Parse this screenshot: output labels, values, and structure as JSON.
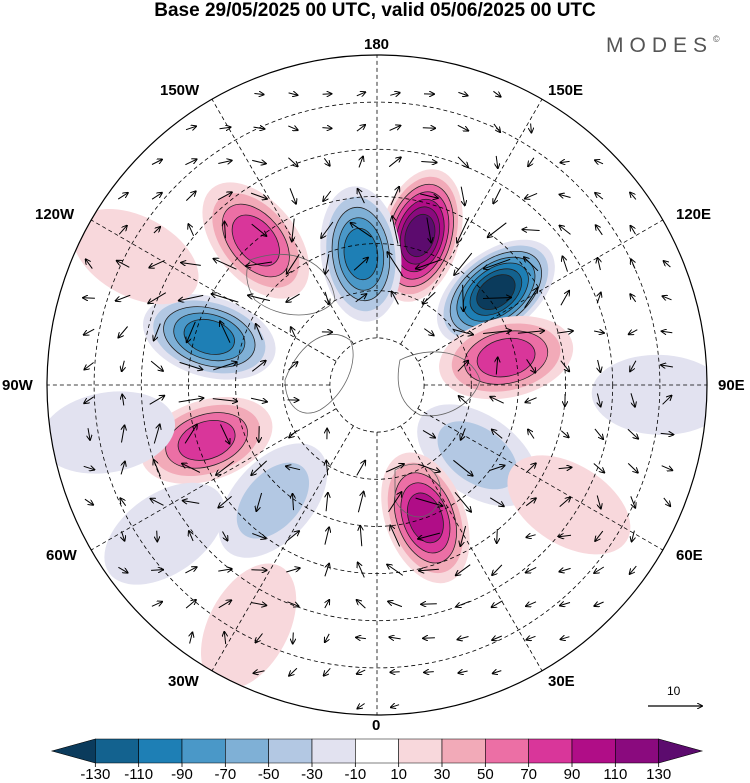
{
  "title": "Base 29/05/2025 00 UTC, valid 05/06/2025 00 UTC",
  "brand": "MODES",
  "brand_mark": "©",
  "longitude_labels": {
    "lon_180": "180",
    "lon_150e": "150E",
    "lon_120e": "120E",
    "lon_90e": "90E",
    "lon_60e": "60E",
    "lon_30e": "30E",
    "lon_0": "0",
    "lon_30w": "30W",
    "lon_60w": "60W",
    "lon_90w": "90W",
    "lon_120w": "120W",
    "lon_150w": "150W"
  },
  "wind_reference": {
    "value": "10"
  },
  "colorbar": {
    "ticks": [
      "-130",
      "-110",
      "-90",
      "-70",
      "-50",
      "-30",
      "-10",
      "10",
      "30",
      "50",
      "70",
      "90",
      "110",
      "130"
    ],
    "colors": [
      "#0b3b5c",
      "#13628f",
      "#1e7fb5",
      "#4a98c8",
      "#7fb0d6",
      "#b3c8e3",
      "#e2e2f0",
      "#ffffff",
      "#f8d8dc",
      "#f2aab8",
      "#ec6fa5",
      "#d9369a",
      "#b00d87",
      "#8a0a7e",
      "#5c0b6e"
    ]
  },
  "anomaly_centers": [
    {
      "name": "anomaly-150e-positive",
      "lat": 57,
      "lon": 164,
      "value": 140
    },
    {
      "name": "anomaly-170w-negative",
      "lat": 62,
      "lon": -173,
      "value": -100
    },
    {
      "name": "anomaly-120e-negative",
      "lat": 58,
      "lon": 128,
      "value": -140
    },
    {
      "name": "anomaly-100e-positive",
      "lat": 62,
      "lon": 102,
      "value": 80
    },
    {
      "name": "anomaly-70e-negative",
      "lat": 64,
      "lon": 55,
      "value": -50
    },
    {
      "name": "anomaly-20e-positive",
      "lat": 60,
      "lon": 20,
      "value": 110
    },
    {
      "name": "anomaly-45e-positive",
      "lat": 42,
      "lon": 58,
      "value": 35
    },
    {
      "name": "anomaly-30w-positive",
      "lat": 32,
      "lon": -28,
      "value": 30
    },
    {
      "name": "anomaly-50w-negative",
      "lat": 57,
      "lon": -42,
      "value": -55
    },
    {
      "name": "anomaly-75w-positive",
      "lat": 52,
      "lon": -72,
      "value": 85
    },
    {
      "name": "anomaly-105w-negative",
      "lat": 53,
      "lon": -106,
      "value": -100
    },
    {
      "name": "anomaly-140w-positive",
      "lat": 50,
      "lon": -140,
      "value": 85
    },
    {
      "name": "anomaly-120w-positive",
      "lat": 32,
      "lon": -118,
      "value": 30
    },
    {
      "name": "anomaly-80w-negative",
      "lat": 32,
      "lon": -80,
      "value": -35
    },
    {
      "name": "anomaly-60w-negative",
      "lat": 35,
      "lon": -55,
      "value": -25
    },
    {
      "name": "anomaly-90e-negative",
      "lat": 30,
      "lon": 88,
      "value": -30
    }
  ]
}
